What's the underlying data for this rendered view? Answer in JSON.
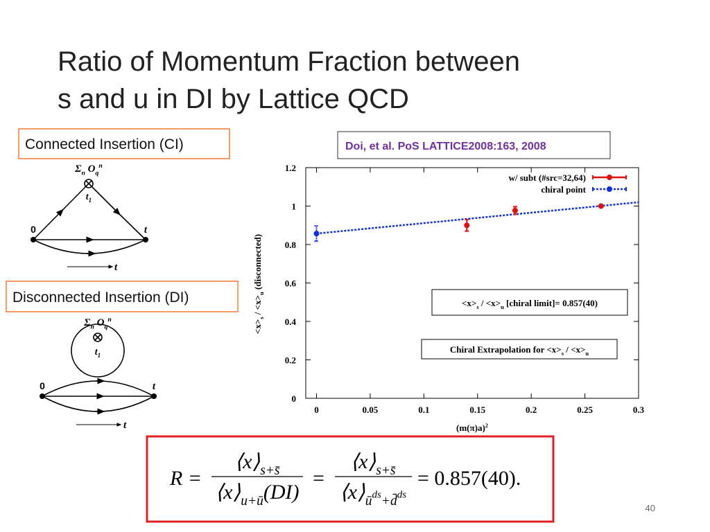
{
  "title": [
    "Ratio of Momentum Fraction between",
    "s and u in DI by Lattice QCD"
  ],
  "ci_label": "Connected Insertion (CI)",
  "di_label": "Disconnected Insertion (DI)",
  "citation": "Doi, et al. PoS LATTICE2008:163, 2008",
  "ci_diagram": {
    "operator": [
      "Σ",
      "n",
      " O",
      "q",
      "n"
    ],
    "vertex": [
      "t",
      "1"
    ],
    "start": "0",
    "end": "t",
    "time": "t"
  },
  "di_diagram": {
    "operator": [
      "Σ",
      "n",
      " O",
      "q",
      "n"
    ],
    "vertex": [
      "t",
      "1"
    ],
    "start": "0",
    "end": "t",
    "time": "t"
  },
  "chart_data": {
    "type": "scatter",
    "xlabel": [
      "(m(π)a)",
      "2"
    ],
    "ylabel": [
      "<x>",
      "s",
      " / <x>",
      "u",
      " (disconnected)"
    ],
    "xlim": [
      -0.01,
      0.3
    ],
    "ylim": [
      0,
      1.2
    ],
    "xticks": [
      0,
      0.05,
      0.1,
      0.15,
      0.2,
      0.25,
      0.3
    ],
    "yticks": [
      0,
      0.2,
      0.4,
      0.6,
      0.8,
      1,
      1.2
    ],
    "grid": false,
    "legend": "upper right",
    "series": [
      {
        "name": "w/ subt (#src=32,64)",
        "color": "#e01010",
        "x": [
          0.14,
          0.185,
          0.265
        ],
        "values": [
          0.9,
          0.977,
          1.0
        ],
        "errors": [
          0.03,
          0.02,
          0.005
        ]
      },
      {
        "name": "chiral point",
        "color": "#1030e0",
        "x": [
          0
        ],
        "values": [
          0.857
        ],
        "errors": [
          0.04
        ]
      }
    ],
    "fit": {
      "x": [
        0,
        0.3
      ],
      "values": [
        0.857,
        1.02
      ]
    },
    "annotations": [
      [
        "<x>",
        "s",
        " / <x>",
        "u",
        " [chiral limit]= 0.857(40)"
      ],
      [
        "Chiral Extrapolation for <x>",
        "s",
        " / <x>",
        "u"
      ]
    ]
  },
  "formula": {
    "lhs": "R =",
    "num1": [
      "⟨x⟩",
      "s+s̄"
    ],
    "den1": [
      "⟨x⟩",
      "u+ū",
      "(DI)"
    ],
    "eq": "=",
    "num2": [
      "⟨x⟩",
      "s+s̄"
    ],
    "den2": [
      "⟨x⟩",
      "ū",
      "ds",
      "+d̄",
      "ds"
    ],
    "result": "= 0.857(40)."
  },
  "page_number": "40"
}
